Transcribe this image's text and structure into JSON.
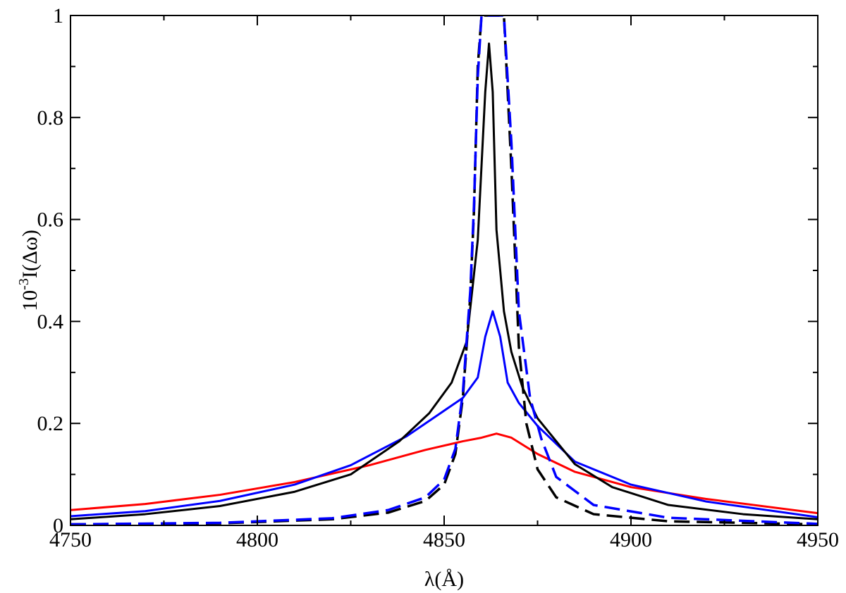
{
  "chart_data": {
    "type": "line",
    "title": "",
    "xlabel": "λ(Å)",
    "ylabel": {
      "base": "10",
      "exponent": "-3",
      "rest": "I(Δω)"
    },
    "xlim": [
      4750,
      4950
    ],
    "ylim": [
      0,
      1
    ],
    "xticks": [
      4750,
      4800,
      4850,
      4900,
      4950
    ],
    "yticks": [
      0,
      0.2,
      0.4,
      0.6,
      0.8,
      1
    ],
    "xtick_labels": [
      "4750",
      "4800",
      "4850",
      "4900",
      "4950"
    ],
    "ytick_labels": [
      "0",
      "0.2",
      "0.4",
      "0.6",
      "0.8",
      "1"
    ],
    "grid": false,
    "legend": "none",
    "series": [
      {
        "color": "#ff0000",
        "dash": "solid",
        "x": [
          4750,
          4770,
          4790,
          4810,
          4830,
          4845,
          4855,
          4860,
          4864,
          4868,
          4875,
          4885,
          4900,
          4920,
          4950
        ],
        "y": [
          0.03,
          0.042,
          0.06,
          0.085,
          0.118,
          0.148,
          0.165,
          0.172,
          0.18,
          0.172,
          0.14,
          0.105,
          0.075,
          0.052,
          0.024
        ]
      },
      {
        "color": "#0000ff",
        "dash": "solid",
        "x": [
          4750,
          4770,
          4790,
          4810,
          4825,
          4840,
          4848,
          4855,
          4859,
          4861,
          4863,
          4865,
          4867,
          4870,
          4875,
          4885,
          4900,
          4920,
          4950
        ],
        "y": [
          0.018,
          0.028,
          0.048,
          0.08,
          0.118,
          0.175,
          0.215,
          0.25,
          0.29,
          0.37,
          0.42,
          0.37,
          0.28,
          0.24,
          0.195,
          0.125,
          0.08,
          0.047,
          0.016
        ]
      },
      {
        "color": "#000000",
        "dash": "solid",
        "x": [
          4750,
          4770,
          4790,
          4810,
          4825,
          4838,
          4846,
          4852,
          4856,
          4859,
          4861,
          4862,
          4863,
          4864,
          4866,
          4868,
          4871,
          4875,
          4885,
          4895,
          4910,
          4930,
          4950
        ],
        "y": [
          0.012,
          0.022,
          0.038,
          0.066,
          0.1,
          0.165,
          0.22,
          0.28,
          0.36,
          0.56,
          0.85,
          0.945,
          0.85,
          0.58,
          0.42,
          0.34,
          0.27,
          0.21,
          0.12,
          0.075,
          0.04,
          0.022,
          0.012
        ]
      },
      {
        "color": "#000000",
        "dash": "dashed",
        "x": [
          4750,
          4790,
          4820,
          4835,
          4845,
          4850,
          4853,
          4855,
          4857,
          4858,
          4859,
          4860,
          4862,
          4864,
          4866,
          4868,
          4870,
          4872,
          4875,
          4880,
          4890,
          4910,
          4950
        ],
        "y": [
          0.002,
          0.004,
          0.012,
          0.025,
          0.048,
          0.08,
          0.14,
          0.25,
          0.45,
          0.62,
          0.9,
          1.0,
          1.0,
          1.0,
          1.0,
          0.7,
          0.35,
          0.2,
          0.11,
          0.055,
          0.022,
          0.008,
          0.002
        ]
      },
      {
        "color": "#0000ff",
        "dash": "dashed",
        "x": [
          4750,
          4790,
          4820,
          4835,
          4845,
          4850,
          4853,
          4855,
          4857,
          4858,
          4859,
          4860,
          4862,
          4864,
          4866,
          4868,
          4870,
          4873,
          4876,
          4880,
          4890,
          4910,
          4950
        ],
        "y": [
          0.002,
          0.005,
          0.014,
          0.03,
          0.055,
          0.09,
          0.15,
          0.26,
          0.46,
          0.63,
          0.88,
          1.0,
          1.0,
          1.0,
          1.0,
          0.75,
          0.42,
          0.25,
          0.17,
          0.095,
          0.04,
          0.015,
          0.003
        ]
      }
    ]
  }
}
